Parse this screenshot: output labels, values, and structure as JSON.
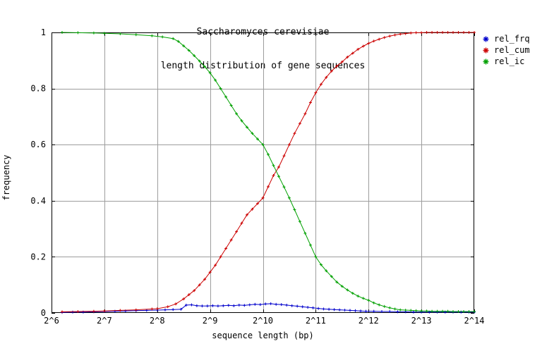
{
  "chart_data": {
    "type": "line",
    "title": "Saccharomyces cerevisiae",
    "subtitle": "length distribution of gene sequences",
    "xlabel": "sequence length (bp)",
    "ylabel": "frequency",
    "x_scale": "log2",
    "xlim_exp": [
      6,
      14
    ],
    "ylim": [
      0,
      1
    ],
    "grid": true,
    "legend_position": "outside-top-right",
    "colors": {
      "background": "#ffffff",
      "border": "#000000",
      "grid": "#9d9d9d",
      "text": "#000000"
    },
    "xticks": [
      {
        "exp": 6,
        "label": "2^6"
      },
      {
        "exp": 7,
        "label": "2^7"
      },
      {
        "exp": 8,
        "label": "2^8"
      },
      {
        "exp": 9,
        "label": "2^9"
      },
      {
        "exp": 10,
        "label": "2^10"
      },
      {
        "exp": 11,
        "label": "2^11"
      },
      {
        "exp": 12,
        "label": "2^12"
      },
      {
        "exp": 13,
        "label": "2^13"
      },
      {
        "exp": 14,
        "label": "2^14"
      }
    ],
    "yticks": [
      {
        "value": 0,
        "label": "0"
      },
      {
        "value": 0.2,
        "label": "0.2"
      },
      {
        "value": 0.4,
        "label": "0.4"
      },
      {
        "value": 0.6,
        "label": "0.6"
      },
      {
        "value": 0.8,
        "label": "0.8"
      },
      {
        "value": 1,
        "label": "1"
      }
    ],
    "series": [
      {
        "name": "rel_frq",
        "color": "#0000cc",
        "marker": "plus",
        "points": [
          [
            6.2,
            0.002
          ],
          [
            6.4,
            0.003
          ],
          [
            6.6,
            0.003
          ],
          [
            6.8,
            0.004
          ],
          [
            7.0,
            0.005
          ],
          [
            7.2,
            0.006
          ],
          [
            7.4,
            0.007
          ],
          [
            7.6,
            0.008
          ],
          [
            7.8,
            0.009
          ],
          [
            8.0,
            0.01
          ],
          [
            8.15,
            0.011
          ],
          [
            8.3,
            0.012
          ],
          [
            8.45,
            0.013
          ],
          [
            8.55,
            0.028
          ],
          [
            8.65,
            0.029
          ],
          [
            8.75,
            0.026
          ],
          [
            8.85,
            0.025
          ],
          [
            8.95,
            0.025
          ],
          [
            9.05,
            0.026
          ],
          [
            9.15,
            0.025
          ],
          [
            9.25,
            0.026
          ],
          [
            9.35,
            0.027
          ],
          [
            9.45,
            0.026
          ],
          [
            9.55,
            0.028
          ],
          [
            9.65,
            0.027
          ],
          [
            9.75,
            0.029
          ],
          [
            9.85,
            0.031
          ],
          [
            9.95,
            0.03
          ],
          [
            10.05,
            0.032
          ],
          [
            10.15,
            0.033
          ],
          [
            10.25,
            0.031
          ],
          [
            10.35,
            0.03
          ],
          [
            10.45,
            0.028
          ],
          [
            10.55,
            0.026
          ],
          [
            10.65,
            0.024
          ],
          [
            10.75,
            0.022
          ],
          [
            10.85,
            0.02
          ],
          [
            10.95,
            0.018
          ],
          [
            11.05,
            0.016
          ],
          [
            11.15,
            0.014
          ],
          [
            11.25,
            0.013
          ],
          [
            11.35,
            0.012
          ],
          [
            11.45,
            0.011
          ],
          [
            11.55,
            0.01
          ],
          [
            11.65,
            0.009
          ],
          [
            11.75,
            0.008
          ],
          [
            11.85,
            0.007
          ],
          [
            11.95,
            0.006
          ],
          [
            12.1,
            0.006
          ],
          [
            12.25,
            0.005
          ],
          [
            12.4,
            0.005
          ],
          [
            12.55,
            0.004
          ],
          [
            12.7,
            0.004
          ],
          [
            12.85,
            0.003
          ],
          [
            13.0,
            0.003
          ],
          [
            13.15,
            0.003
          ],
          [
            13.3,
            0.003
          ],
          [
            13.45,
            0.003
          ],
          [
            13.6,
            0.003
          ],
          [
            13.75,
            0.003
          ],
          [
            13.9,
            0.003
          ],
          [
            14.0,
            0.003
          ]
        ]
      },
      {
        "name": "rel_cum",
        "color": "#cc0000",
        "marker": "plus",
        "points": [
          [
            6.2,
            0.004
          ],
          [
            6.5,
            0.005
          ],
          [
            6.8,
            0.006
          ],
          [
            7.0,
            0.007
          ],
          [
            7.3,
            0.009
          ],
          [
            7.6,
            0.011
          ],
          [
            7.9,
            0.014
          ],
          [
            8.0,
            0.015
          ],
          [
            8.2,
            0.022
          ],
          [
            8.35,
            0.032
          ],
          [
            8.5,
            0.05
          ],
          [
            8.6,
            0.065
          ],
          [
            8.7,
            0.08
          ],
          [
            8.8,
            0.1
          ],
          [
            8.9,
            0.12
          ],
          [
            9.0,
            0.145
          ],
          [
            9.1,
            0.17
          ],
          [
            9.2,
            0.2
          ],
          [
            9.3,
            0.23
          ],
          [
            9.4,
            0.26
          ],
          [
            9.5,
            0.29
          ],
          [
            9.6,
            0.32
          ],
          [
            9.7,
            0.35
          ],
          [
            9.8,
            0.37
          ],
          [
            9.9,
            0.39
          ],
          [
            10.0,
            0.41
          ],
          [
            10.1,
            0.45
          ],
          [
            10.2,
            0.49
          ],
          [
            10.3,
            0.52
          ],
          [
            10.4,
            0.56
          ],
          [
            10.5,
            0.6
          ],
          [
            10.6,
            0.64
          ],
          [
            10.7,
            0.675
          ],
          [
            10.8,
            0.71
          ],
          [
            10.9,
            0.75
          ],
          [
            11.0,
            0.785
          ],
          [
            11.1,
            0.815
          ],
          [
            11.2,
            0.84
          ],
          [
            11.3,
            0.862
          ],
          [
            11.4,
            0.88
          ],
          [
            11.5,
            0.895
          ],
          [
            11.6,
            0.912
          ],
          [
            11.7,
            0.926
          ],
          [
            11.8,
            0.94
          ],
          [
            11.9,
            0.951
          ],
          [
            12.0,
            0.961
          ],
          [
            12.1,
            0.969
          ],
          [
            12.2,
            0.976
          ],
          [
            12.3,
            0.982
          ],
          [
            12.4,
            0.987
          ],
          [
            12.5,
            0.991
          ],
          [
            12.6,
            0.994
          ],
          [
            12.7,
            0.996
          ],
          [
            12.8,
            0.998
          ],
          [
            12.9,
            0.999
          ],
          [
            13.0,
            0.999
          ],
          [
            13.1,
            1.0
          ],
          [
            13.2,
            1.0
          ],
          [
            13.3,
            1.0
          ],
          [
            13.4,
            1.0
          ],
          [
            13.5,
            1.0
          ],
          [
            13.6,
            1.0
          ],
          [
            13.7,
            1.0
          ],
          [
            13.8,
            1.0
          ],
          [
            13.9,
            1.0
          ],
          [
            14.0,
            1.0
          ]
        ]
      },
      {
        "name": "rel_ic",
        "color": "#00a000",
        "marker": "plus",
        "points": [
          [
            6.2,
            1.0
          ],
          [
            6.5,
            0.999
          ],
          [
            6.8,
            0.998
          ],
          [
            7.0,
            0.997
          ],
          [
            7.3,
            0.995
          ],
          [
            7.6,
            0.992
          ],
          [
            7.9,
            0.988
          ],
          [
            8.1,
            0.984
          ],
          [
            8.3,
            0.978
          ],
          [
            8.4,
            0.968
          ],
          [
            8.5,
            0.952
          ],
          [
            8.6,
            0.936
          ],
          [
            8.7,
            0.917
          ],
          [
            8.8,
            0.898
          ],
          [
            8.9,
            0.878
          ],
          [
            9.0,
            0.856
          ],
          [
            9.1,
            0.83
          ],
          [
            9.2,
            0.8
          ],
          [
            9.3,
            0.77
          ],
          [
            9.4,
            0.74
          ],
          [
            9.5,
            0.71
          ],
          [
            9.6,
            0.685
          ],
          [
            9.7,
            0.662
          ],
          [
            9.8,
            0.64
          ],
          [
            9.9,
            0.62
          ],
          [
            10.0,
            0.6
          ],
          [
            10.1,
            0.565
          ],
          [
            10.2,
            0.526
          ],
          [
            10.3,
            0.487
          ],
          [
            10.4,
            0.449
          ],
          [
            10.5,
            0.41
          ],
          [
            10.6,
            0.368
          ],
          [
            10.7,
            0.326
          ],
          [
            10.8,
            0.284
          ],
          [
            10.9,
            0.242
          ],
          [
            11.0,
            0.2
          ],
          [
            11.1,
            0.172
          ],
          [
            11.2,
            0.15
          ],
          [
            11.3,
            0.13
          ],
          [
            11.4,
            0.11
          ],
          [
            11.5,
            0.095
          ],
          [
            11.6,
            0.082
          ],
          [
            11.7,
            0.07
          ],
          [
            11.8,
            0.06
          ],
          [
            11.9,
            0.052
          ],
          [
            12.0,
            0.045
          ],
          [
            12.1,
            0.036
          ],
          [
            12.2,
            0.029
          ],
          [
            12.3,
            0.023
          ],
          [
            12.4,
            0.018
          ],
          [
            12.5,
            0.014
          ],
          [
            12.6,
            0.011
          ],
          [
            12.7,
            0.01
          ],
          [
            12.8,
            0.009
          ],
          [
            12.9,
            0.008
          ],
          [
            13.0,
            0.007
          ],
          [
            13.1,
            0.007
          ],
          [
            13.2,
            0.006
          ],
          [
            13.3,
            0.006
          ],
          [
            13.4,
            0.006
          ],
          [
            13.5,
            0.006
          ],
          [
            13.6,
            0.005
          ],
          [
            13.7,
            0.005
          ],
          [
            13.8,
            0.005
          ],
          [
            13.9,
            0.005
          ],
          [
            14.0,
            0.005
          ]
        ]
      }
    ]
  }
}
